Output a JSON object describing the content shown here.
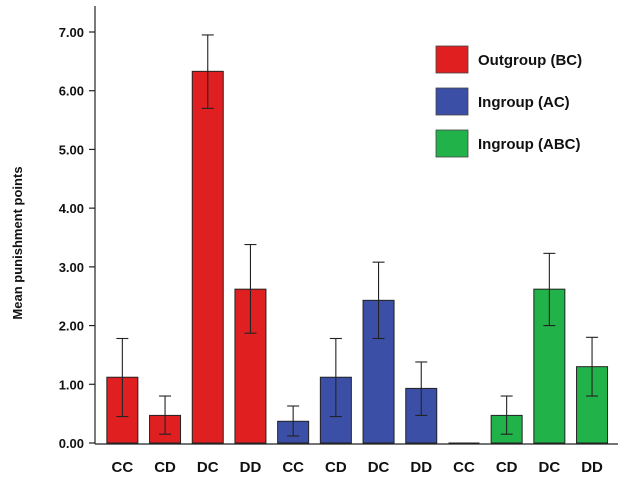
{
  "chart_data": {
    "type": "bar",
    "ylabel": "Mean punishment points",
    "ylim": [
      0,
      7
    ],
    "yticks": [
      "0.00",
      "1.00",
      "2.00",
      "3.00",
      "4.00",
      "5.00",
      "6.00",
      "7.00"
    ],
    "categories": [
      "CC",
      "CD",
      "DC",
      "DD",
      "CC",
      "CD",
      "DC",
      "DD",
      "CC",
      "CD",
      "DC",
      "DD"
    ],
    "series": [
      {
        "name": "Outgroup (BC)",
        "color": "#e02020",
        "bars": [
          {
            "category": "CC",
            "value": 1.12,
            "err_low": 0.45,
            "err_high": 1.78
          },
          {
            "category": "CD",
            "value": 0.47,
            "err_low": 0.15,
            "err_high": 0.8
          },
          {
            "category": "DC",
            "value": 6.33,
            "err_low": 5.7,
            "err_high": 6.95
          },
          {
            "category": "DD",
            "value": 2.62,
            "err_low": 1.87,
            "err_high": 3.38
          }
        ]
      },
      {
        "name": "Ingroup (AC)",
        "color": "#3c4fa6",
        "bars": [
          {
            "category": "CC",
            "value": 0.37,
            "err_low": 0.12,
            "err_high": 0.63
          },
          {
            "category": "CD",
            "value": 1.12,
            "err_low": 0.45,
            "err_high": 1.78
          },
          {
            "category": "DC",
            "value": 2.43,
            "err_low": 1.78,
            "err_high": 3.08
          },
          {
            "category": "DD",
            "value": 0.93,
            "err_low": 0.47,
            "err_high": 1.38
          }
        ]
      },
      {
        "name": "Ingroup (ABC)",
        "color": "#22b24a",
        "bars": [
          {
            "category": "CC",
            "value": 0.0,
            "err_low": 0.0,
            "err_high": 0.0
          },
          {
            "category": "CD",
            "value": 0.47,
            "err_low": 0.15,
            "err_high": 0.8
          },
          {
            "category": "DC",
            "value": 2.62,
            "err_low": 2.0,
            "err_high": 3.23
          },
          {
            "category": "DD",
            "value": 1.3,
            "err_low": 0.8,
            "err_high": 1.8
          }
        ]
      }
    ],
    "legend_position": "top-right",
    "grid": false
  }
}
